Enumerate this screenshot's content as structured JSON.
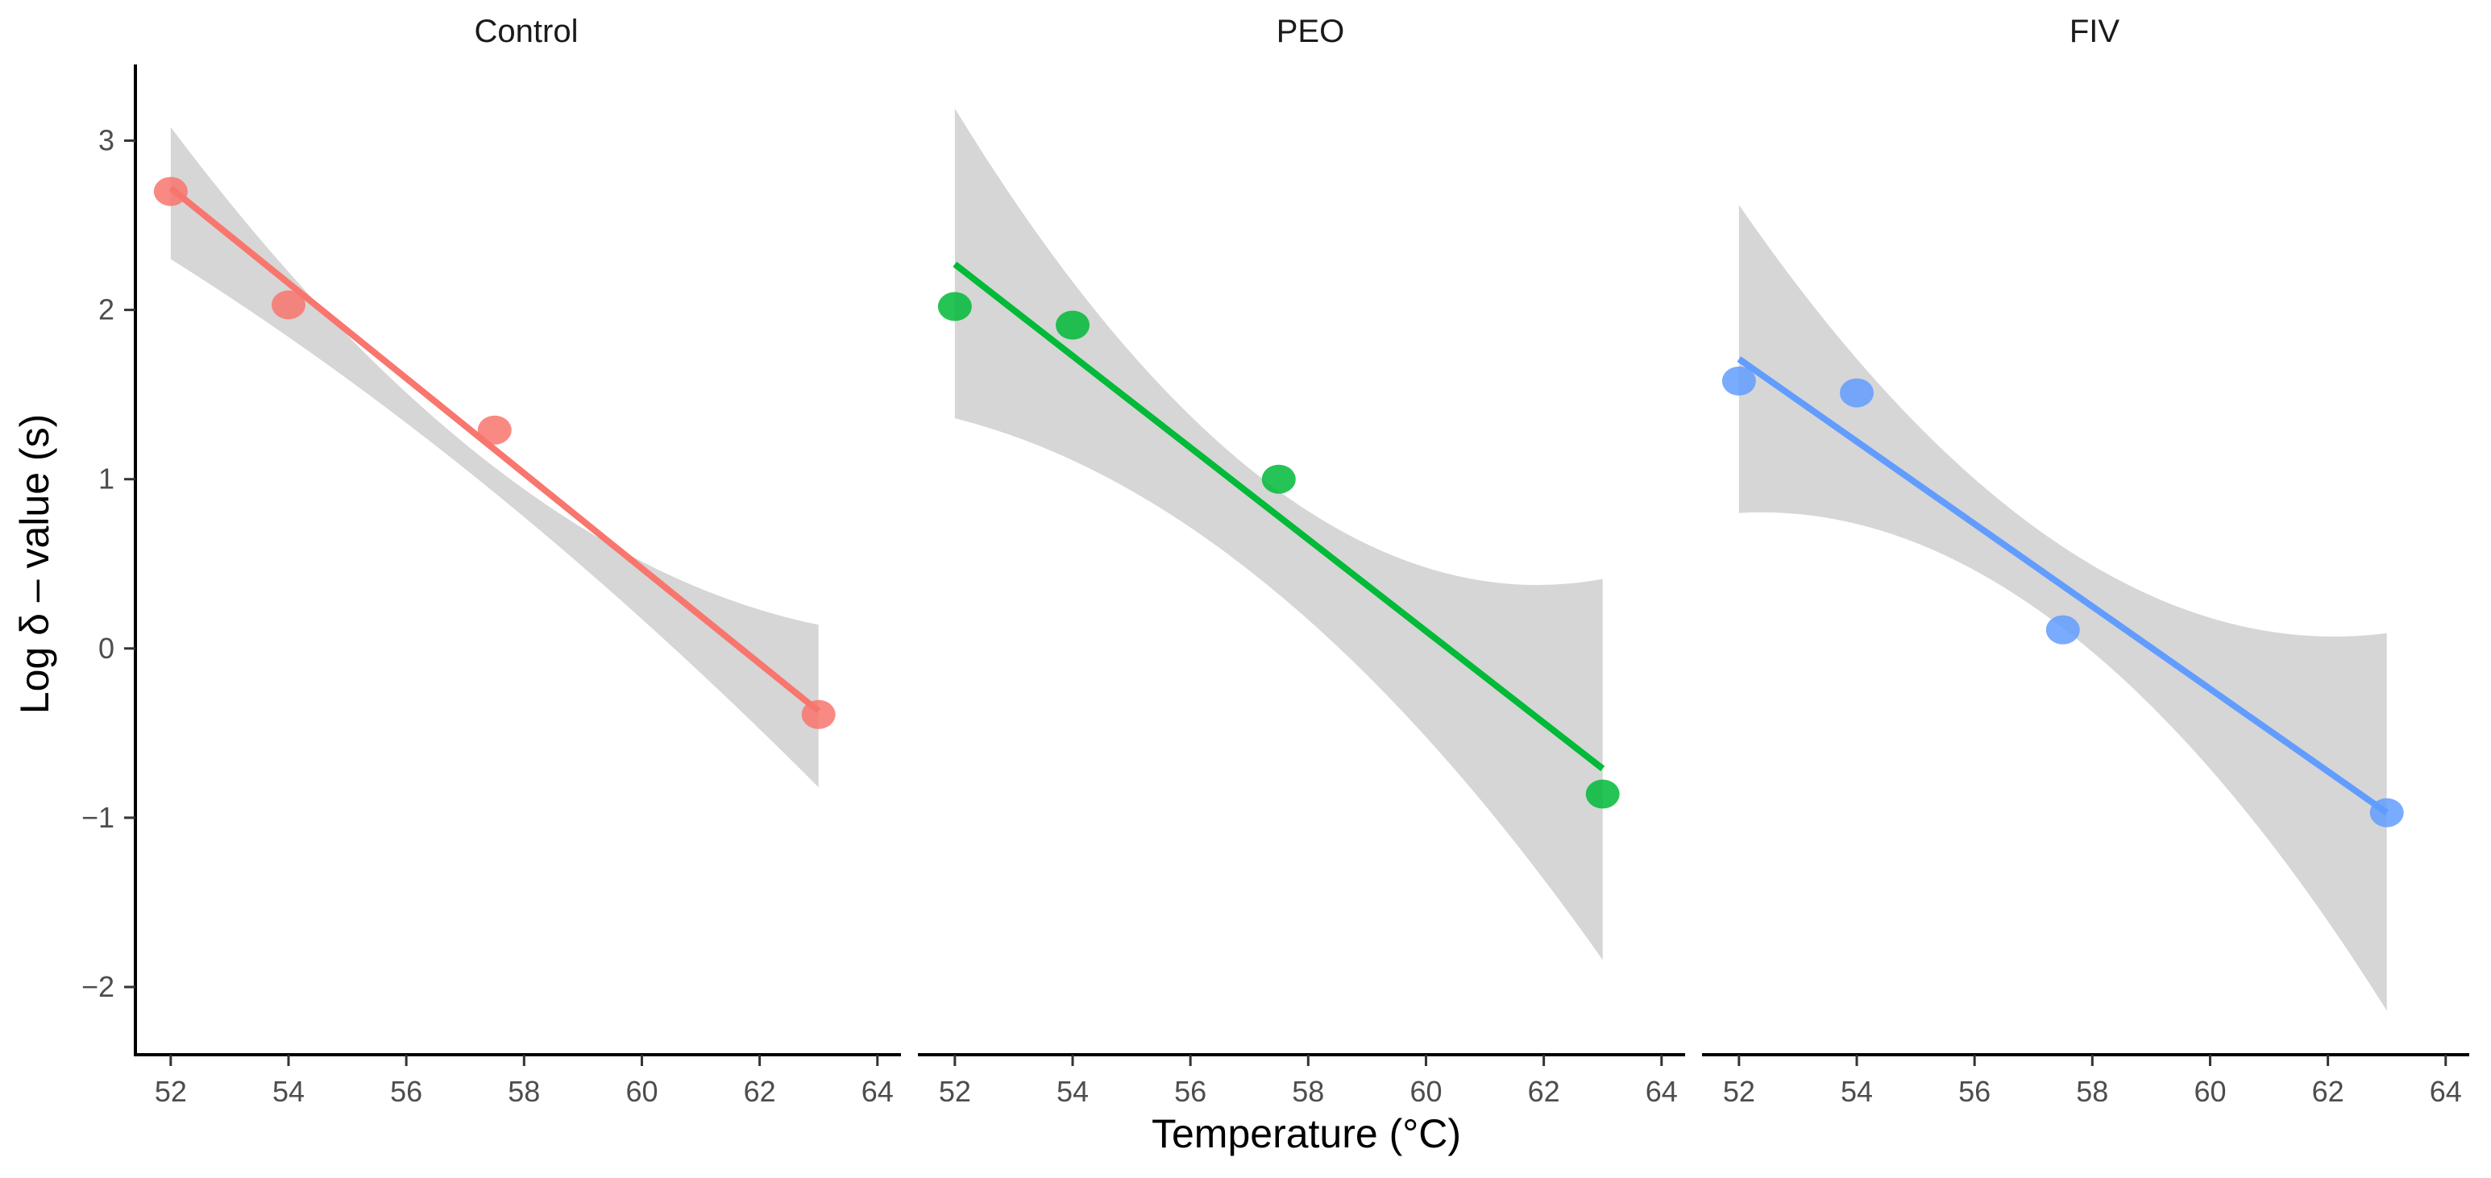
{
  "chart_data": {
    "type": "scatter",
    "xlabel": "Temperature (°C)",
    "ylabel": "Log δ – value (s)",
    "xlim": [
      51.4,
      64.4
    ],
    "ylim": [
      -2.4,
      3.45
    ],
    "x_ticks": [
      52,
      54,
      56,
      58,
      60,
      62,
      64
    ],
    "x_tick_labels": [
      "52",
      "54",
      "56",
      "58",
      "60",
      "62",
      "64"
    ],
    "y_ticks": [
      3,
      2,
      1,
      0,
      -1,
      -2
    ],
    "y_tick_labels": [
      "3",
      "2",
      "1",
      "0",
      "−1",
      "−2"
    ],
    "grid": false,
    "panels": [
      {
        "title": "Control",
        "color": "#F8766D",
        "points": [
          {
            "x": 52,
            "y": 2.7
          },
          {
            "x": 54,
            "y": 2.03
          },
          {
            "x": 57.5,
            "y": 1.29
          },
          {
            "x": 63,
            "y": -0.39
          }
        ],
        "fit": {
          "x": [
            52,
            63
          ],
          "y": [
            2.72,
            -0.37
          ]
        },
        "ribbon": {
          "x": [
            52,
            57.5,
            63
          ],
          "lower": [
            2.3,
            0.92,
            -0.82
          ],
          "upper": [
            3.08,
            1.07,
            0.14
          ]
        }
      },
      {
        "title": "PEO",
        "color": "#00BA38",
        "points": [
          {
            "x": 52,
            "y": 2.02
          },
          {
            "x": 54,
            "y": 1.91
          },
          {
            "x": 57.5,
            "y": 1.0
          },
          {
            "x": 63,
            "y": -0.86
          }
        ],
        "fit": {
          "x": [
            52,
            63
          ],
          "y": [
            2.27,
            -0.71
          ]
        },
        "ribbon": {
          "x": [
            52,
            57.5,
            63
          ],
          "lower": [
            1.36,
            0.32,
            -1.84
          ],
          "upper": [
            3.19,
            0.93,
            0.41
          ]
        }
      },
      {
        "title": "FIV",
        "color": "#619CFF",
        "points": [
          {
            "x": 52,
            "y": 1.58
          },
          {
            "x": 54,
            "y": 1.51
          },
          {
            "x": 57.5,
            "y": 0.11
          },
          {
            "x": 63,
            "y": -0.97
          }
        ],
        "fit": {
          "x": [
            52,
            63
          ],
          "y": [
            1.71,
            -0.97
          ]
        },
        "ribbon": {
          "x": [
            52,
            57.5,
            63
          ],
          "lower": [
            0.8,
            0.12,
            -2.14
          ],
          "upper": [
            2.62,
            0.6,
            0.09
          ]
        }
      }
    ]
  }
}
